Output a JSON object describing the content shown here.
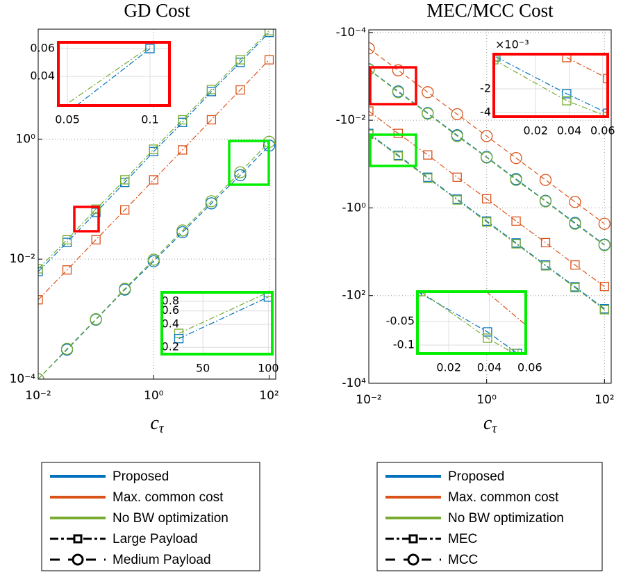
{
  "chart_data": [
    {
      "type": "line",
      "title": "GD Cost",
      "xlabel": {
        "base": "c",
        "sub": "τ"
      },
      "xscale": "log",
      "yscale": "log",
      "grid": true,
      "xlim": [
        0.01,
        130
      ],
      "ylim": [
        0.0001,
        68
      ],
      "xticks": [
        {
          "value": 0.01,
          "label": "10⁻²"
        },
        {
          "value": 1,
          "label": "10⁰"
        },
        {
          "value": 100,
          "label": "10²"
        }
      ],
      "yticks": [
        {
          "value": 0.0001,
          "label": "10⁻⁴"
        },
        {
          "value": 0.01,
          "label": "10⁻²"
        },
        {
          "value": 1,
          "label": "10⁰"
        }
      ],
      "x": [
        0.01,
        0.0316,
        0.1,
        0.316,
        1,
        3.16,
        10,
        31.6,
        100
      ],
      "series": [
        {
          "color": "#0072bd",
          "marker": "square",
          "dash": "dashdot",
          "values": [
            0.0062,
            0.019,
            0.06,
            0.19,
            0.62,
            1.9,
            6.2,
            19,
            60
          ]
        },
        {
          "color": "#d95319",
          "marker": "square",
          "dash": "dashdot",
          "values": [
            0.0021,
            0.0066,
            0.021,
            0.066,
            0.21,
            0.66,
            2.1,
            6.6,
            21
          ]
        },
        {
          "color": "#77ac30",
          "marker": "square",
          "dash": "dashdot",
          "values": [
            0.0069,
            0.021,
            0.068,
            0.21,
            0.68,
            2.1,
            6.7,
            21,
            64
          ]
        },
        {
          "color": "#0072bd",
          "marker": "circle",
          "dash": "dashed",
          "values": [
            0.0001,
            0.00031,
            0.00098,
            0.0031,
            0.0092,
            0.028,
            0.085,
            0.25,
            0.78
          ]
        },
        {
          "color": "#77ac30",
          "marker": "circle",
          "dash": "dashed",
          "values": [
            0.0001,
            0.00032,
            0.001,
            0.0032,
            0.0098,
            0.03,
            0.092,
            0.28,
            0.9
          ]
        }
      ],
      "insets": [
        {
          "color": "#ff0000",
          "xlim": [
            0.0445,
            0.1118
          ],
          "ylim": [
            0.019,
            0.0645
          ],
          "yscale": "linear",
          "xticks": [
            0.05,
            0.1
          ],
          "yticks": [
            0.06,
            0.04
          ],
          "series": [
            {
              "color": "#77ac30",
              "marker": "none",
              "dash": "dashdot",
              "x": [
                0.0513,
                0.1
              ],
              "values": [
                0.0215,
                0.0615
              ]
            },
            {
              "color": "#0072bd",
              "marker": "square",
              "dash": "dashdot",
              "x": [
                0.1
              ],
              "values": [
                0.06
              ]
            },
            {
              "color": "#0072bd",
              "marker": "none",
              "dash": "dashdot",
              "x": [
                0.0555,
                0.1
              ],
              "values": [
                0.019,
                0.06
              ]
            }
          ]
        },
        {
          "color": "#00ee00",
          "xlim": [
            18.6,
            103
          ],
          "ylim": [
            0.163,
            1.05
          ],
          "yscale": "log",
          "xticks": [
            50,
            100
          ],
          "yticks": [
            0.8,
            0.6,
            0.4,
            0.2
          ],
          "series": [
            {
              "color": "#77ac30",
              "marker": "square",
              "dash": "dashdot",
              "x": [
                31.6,
                100
              ],
              "values": [
                0.305,
                1.05
              ]
            },
            {
              "color": "#0072bd",
              "marker": "square",
              "dash": "dashdot",
              "x": [
                31.6,
                100
              ],
              "values": [
                0.26,
                0.91
              ]
            }
          ]
        }
      ],
      "legend": [
        {
          "name": "Proposed",
          "color": "#0072bd"
        },
        {
          "name": "Max. common cost",
          "color": "#d95319"
        },
        {
          "name": "No BW optimization",
          "color": "#77ac30"
        },
        {
          "name": "Large Payload",
          "marker": "square",
          "dash": "dashdot"
        },
        {
          "name": "Medium Payload",
          "marker": "circle",
          "dash": "dashed"
        }
      ]
    },
    {
      "type": "line",
      "title": "MEC/MCC Cost",
      "xlabel": {
        "base": "c",
        "sub": "τ"
      },
      "xscale": "log",
      "yscale": "log",
      "grid": true,
      "xlim": [
        0.01,
        130
      ],
      "ylim": [
        -10000,
        -8.7e-05
      ],
      "xticks": [
        {
          "value": 0.01,
          "label": "10⁻²"
        },
        {
          "value": 1,
          "label": "10⁰"
        },
        {
          "value": 100,
          "label": "10²"
        }
      ],
      "yticks": [
        {
          "value": -0.0001,
          "label": "-10⁻⁴"
        },
        {
          "value": -0.01,
          "label": "-10⁻²"
        },
        {
          "value": -1,
          "label": "-10⁰"
        },
        {
          "value": -100,
          "label": "-10²"
        },
        {
          "value": -10000,
          "label": "-10⁴"
        }
      ],
      "x": [
        0.01,
        0.0316,
        0.1,
        0.316,
        1,
        3.16,
        10,
        31.6,
        100
      ],
      "series": [
        {
          "color": "#0072bd",
          "marker": "square",
          "dash": "dashdot",
          "values": [
            -0.02,
            -0.063,
            -0.2,
            -0.63,
            -2,
            -6.3,
            -20,
            -63,
            -200
          ]
        },
        {
          "color": "#d95319",
          "marker": "square",
          "dash": "dashdot",
          "values": [
            -0.0062,
            -0.02,
            -0.062,
            -0.2,
            -0.62,
            -2,
            -6.2,
            -20,
            -62
          ]
        },
        {
          "color": "#77ac30",
          "marker": "square",
          "dash": "dashdot",
          "values": [
            -0.021,
            -0.066,
            -0.21,
            -0.66,
            -2.1,
            -6.6,
            -21,
            -66,
            -210
          ]
        },
        {
          "color": "#0072bd",
          "marker": "circle",
          "dash": "dashed",
          "values": [
            -0.00069,
            -0.0022,
            -0.0069,
            -0.022,
            -0.069,
            -0.22,
            -0.69,
            -2.2,
            -6.9
          ]
        },
        {
          "color": "#d95319",
          "marker": "circle",
          "dash": "dashed",
          "values": [
            -0.00023,
            -0.00073,
            -0.0023,
            -0.0073,
            -0.023,
            -0.073,
            -0.23,
            -0.73,
            -2.3
          ]
        },
        {
          "color": "#77ac30",
          "marker": "circle",
          "dash": "dashed",
          "values": [
            -0.0007,
            -0.0023,
            -0.0071,
            -0.023,
            -0.071,
            -0.23,
            -0.71,
            -2.3,
            -7.1
          ]
        }
      ],
      "insets": [
        {
          "color": "#ff0000",
          "xlim": [
            -0.005,
            0.063
          ],
          "ylim": [
            -0.00435,
            0.00094
          ],
          "yscale": "linear",
          "y_multiplier": "×10⁻³",
          "xticks": [
            0.02,
            0.04,
            0.06
          ],
          "yticks": [
            {
              "value": -0.002,
              "label": "-2"
            },
            {
              "value": -0.004,
              "label": "-4"
            }
          ],
          "series": [
            {
              "color": "#d95319",
              "marker": "square",
              "dash": "dashdot",
              "x": [
                0.0385,
                0.063
              ],
              "values": [
                0.00065,
                -0.00112
              ]
            },
            {
              "color": "#0072bd",
              "marker": "square",
              "dash": "dashdot",
              "x": [
                -0.0038,
                0.0385,
                0.063
              ],
              "values": [
                0.00071,
                -0.00241,
                -0.00406
              ]
            },
            {
              "color": "#77ac30",
              "marker": "square",
              "dash": "dashdot",
              "x": [
                -0.005,
                0.0385,
                0.063
              ],
              "values": [
                0.00047,
                -0.003,
                -0.00435
              ]
            }
          ]
        },
        {
          "color": "#00ee00",
          "xlim": [
            0.0045,
            0.058
          ],
          "ylim": [
            -0.1176,
            0.0132
          ],
          "yscale": "linear",
          "xticks": [
            0.02,
            0.04,
            0.06
          ],
          "yticks": [
            -0.05,
            -0.1
          ],
          "series": [
            {
              "color": "#d95319",
              "marker": "none",
              "dash": "dashdot",
              "x": [
                0.0385,
                0.058
              ],
              "values": [
                0.0132,
                -0.0574
              ]
            },
            {
              "color": "#0072bd",
              "marker": "square",
              "dash": "dashdot",
              "x": [
                0.0045,
                0.0391,
                0.0539
              ],
              "values": [
                0.0132,
                -0.072,
                -0.1176
              ]
            },
            {
              "color": "#77ac30",
              "marker": "square",
              "dash": "dashdot",
              "x": [
                0.0062,
                0.0391,
                0.0521
              ],
              "values": [
                0.0132,
                -0.0853,
                -0.1176
              ]
            }
          ]
        }
      ],
      "legend": [
        {
          "name": "Proposed",
          "color": "#0072bd"
        },
        {
          "name": "Max. common cost",
          "color": "#d95319"
        },
        {
          "name": "No BW optimization",
          "color": "#77ac30"
        },
        {
          "name": "MEC",
          "marker": "square",
          "dash": "dashdot"
        },
        {
          "name": "MCC",
          "marker": "circle",
          "dash": "dashed"
        }
      ]
    }
  ]
}
